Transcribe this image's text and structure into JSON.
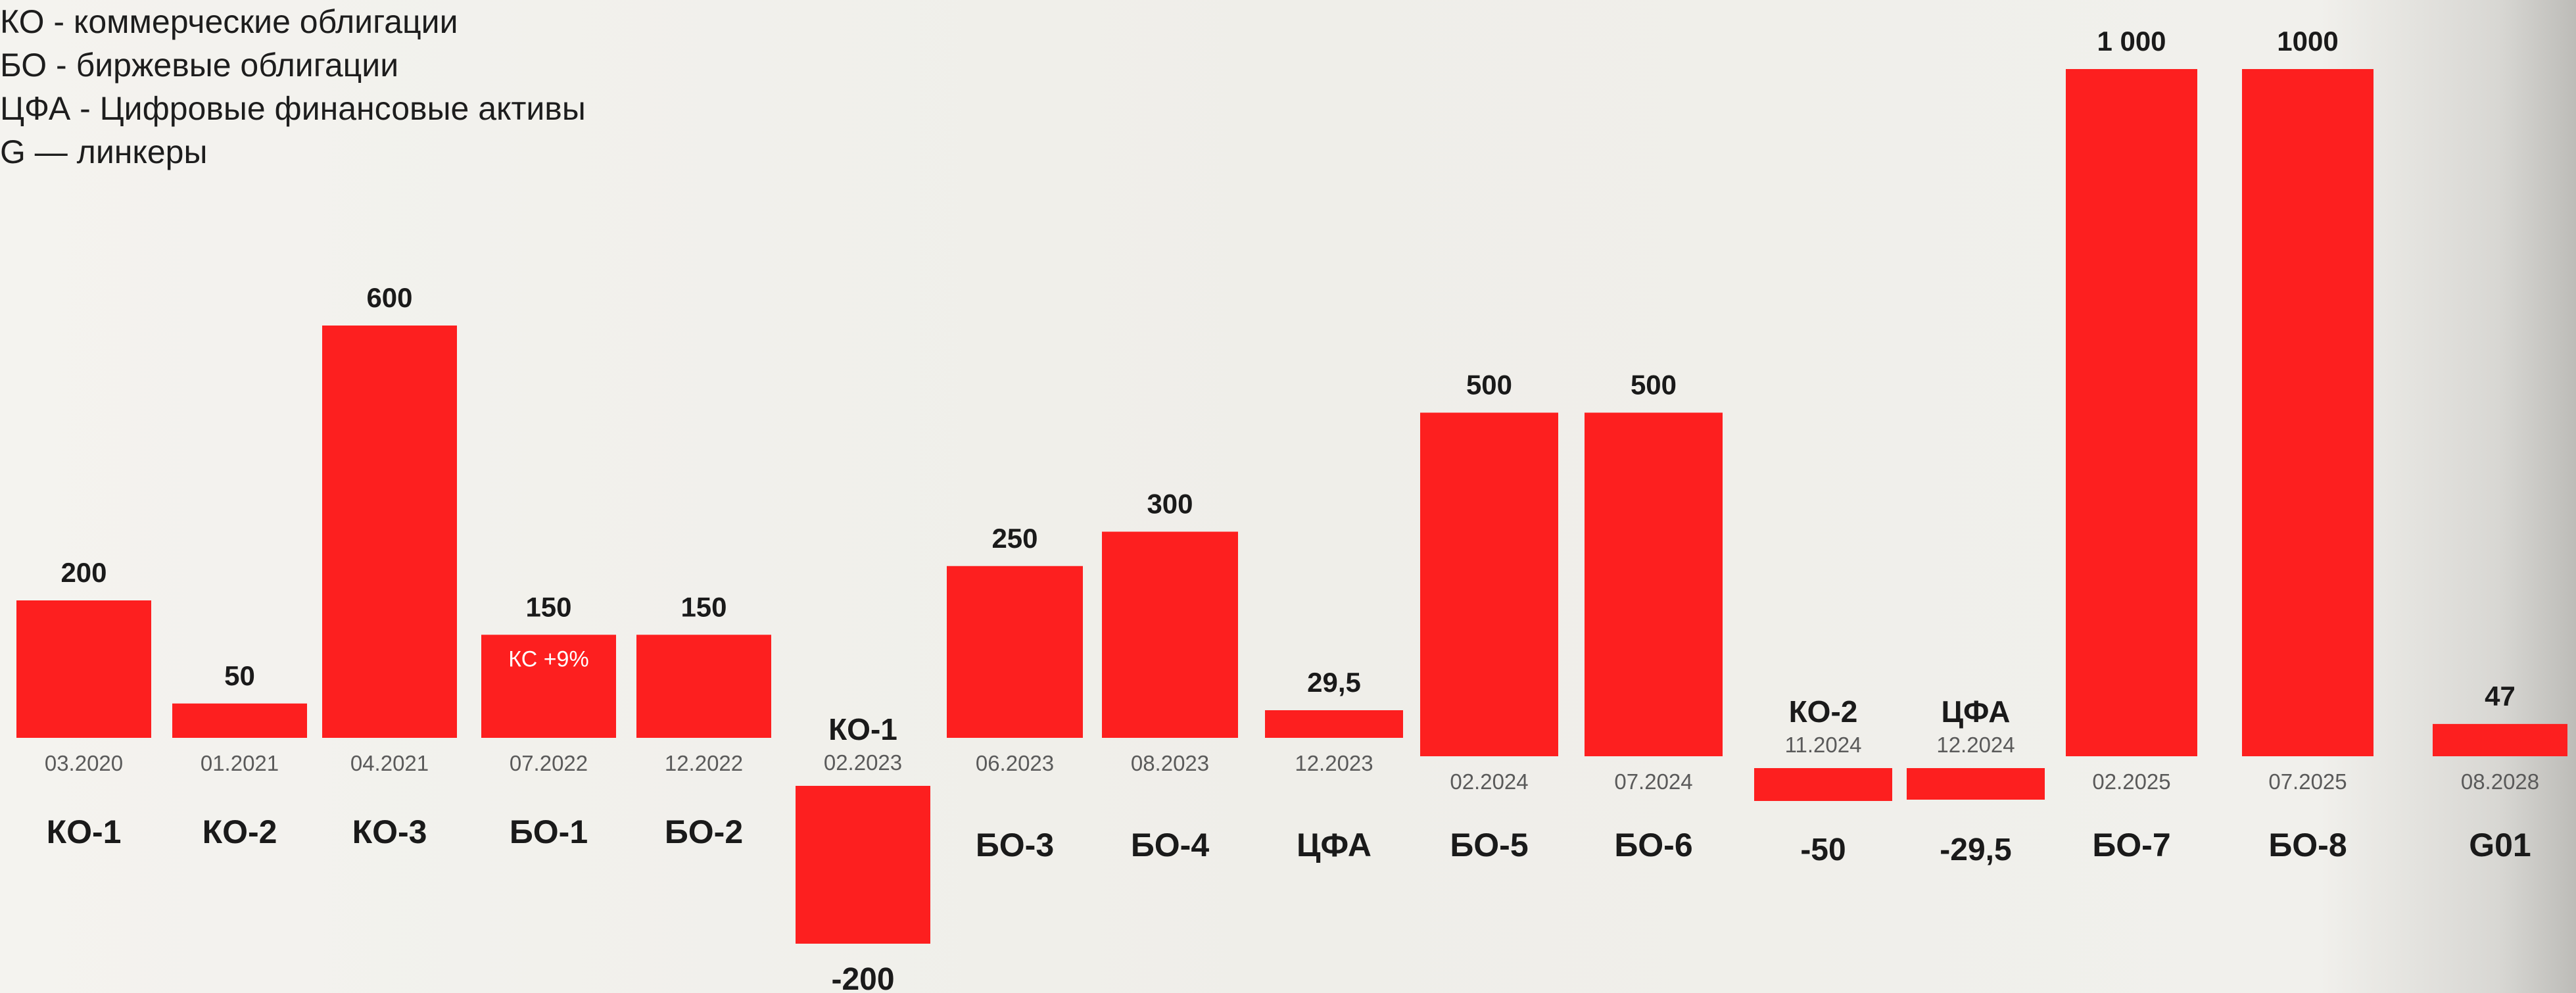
{
  "legend": {
    "lines": [
      "КО - коммерческие облигации",
      "БО - биржевые облигации",
      "ЦФА - Цифровые финансовые активы",
      "G — линкеры"
    ]
  },
  "colors": {
    "bar": "#fd1f1f",
    "value_text": "#1a1a1a",
    "date_text": "#5a5a5a",
    "inner_text": "#ffffff",
    "background": "#f2f1ed"
  },
  "chart_data": {
    "type": "bar",
    "title": "",
    "xlabel": "",
    "ylabel": "",
    "ylim": [
      -200,
      1000
    ],
    "grid": false,
    "bars": [
      {
        "name": "КО-1",
        "date": "03.2020",
        "value": 200,
        "value_label": "200"
      },
      {
        "name": "КО-2",
        "date": "01.2021",
        "value": 50,
        "value_label": "50"
      },
      {
        "name": "КО-3",
        "date": "04.2021",
        "value": 600,
        "value_label": "600"
      },
      {
        "name": "БО-1",
        "date": "07.2022",
        "value": 150,
        "value_label": "150",
        "inner_label": "КС +9%"
      },
      {
        "name": "БО-2",
        "date": "12.2022",
        "value": 150,
        "value_label": "150"
      },
      {
        "name": "КО-1",
        "date": "02.2023",
        "value": -200,
        "value_label": "-200"
      },
      {
        "name": "БО-3",
        "date": "06.2023",
        "value": 250,
        "value_label": "250"
      },
      {
        "name": "БО-4",
        "date": "08.2023",
        "value": 300,
        "value_label": "300"
      },
      {
        "name": "ЦФА",
        "date": "12.2023",
        "value": 29.5,
        "value_label": "29,5"
      },
      {
        "name": "БО-5",
        "date": "02.2024",
        "value": 500,
        "value_label": "500"
      },
      {
        "name": "БО-6",
        "date": "07.2024",
        "value": 500,
        "value_label": "500"
      },
      {
        "name": "КО-2",
        "date": "11.2024",
        "value": -50,
        "value_label": "-50"
      },
      {
        "name": "ЦФА",
        "date": "12.2024",
        "value": -29.5,
        "value_label": "-29,5"
      },
      {
        "name": "БО-7",
        "date": "02.2025",
        "value": 1000,
        "value_label": "1 000"
      },
      {
        "name": "БО-8",
        "date": "07.2025",
        "value": 1000,
        "value_label": "1000"
      },
      {
        "name": "G01",
        "date": "08.2028",
        "value": 47,
        "value_label": "47"
      }
    ]
  }
}
